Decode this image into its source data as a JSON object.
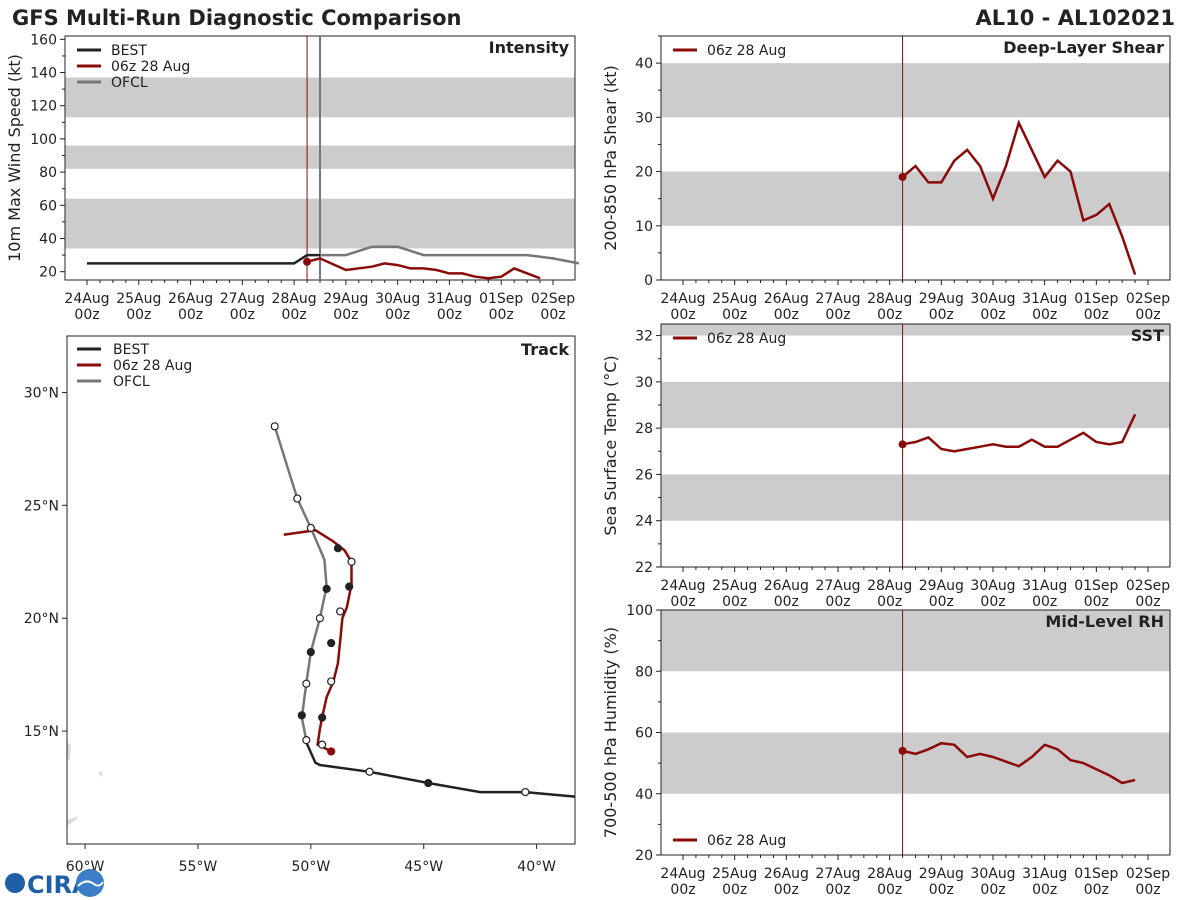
{
  "header": {
    "title": "GFS Multi-Run Diagnostic Comparison",
    "storm_id": "AL10 - AL102021",
    "logo_text": "CIRA"
  },
  "colors": {
    "best": "#222222",
    "run": "#8b0a0a",
    "ofcl": "#777777",
    "band": "#cccccc"
  },
  "time_ticks": [
    "24Aug",
    "25Aug",
    "26Aug",
    "27Aug",
    "28Aug",
    "29Aug",
    "30Aug",
    "31Aug",
    "01Sep",
    "02Sep"
  ],
  "tick_hour": "00z",
  "chart_data": [
    {
      "type": "line",
      "id": "intensity",
      "title": "Intensity",
      "ylabel": "10m Max Wind Speed (kt)",
      "ylim": [
        15,
        162
      ],
      "yticks": [
        20,
        40,
        60,
        80,
        100,
        120,
        140,
        160
      ],
      "bands": [
        [
          34,
          64
        ],
        [
          82,
          96
        ],
        [
          113,
          137
        ]
      ],
      "init_time": 4.25,
      "ofcl_time": 4.5,
      "legend": [
        "BEST",
        "06z 28 Aug",
        "OFCL"
      ],
      "series": [
        {
          "name": "BEST",
          "x": [
            0,
            1,
            2,
            3,
            4,
            4.25,
            4.5
          ],
          "y": [
            25,
            25,
            25,
            25,
            25,
            30,
            30
          ]
        },
        {
          "name": "06z 28 Aug",
          "x": [
            4.25,
            4.5,
            5.0,
            5.5,
            5.75,
            6.0,
            6.25,
            6.5,
            6.75,
            7.0,
            7.25,
            7.5,
            7.75,
            8.0,
            8.25,
            8.75
          ],
          "y": [
            26,
            28,
            21,
            23,
            25,
            24,
            22,
            22,
            21,
            19,
            19,
            17,
            16,
            17,
            22,
            16
          ]
        },
        {
          "name": "OFCL",
          "x": [
            4.5,
            5.0,
            5.5,
            6.0,
            6.5,
            7.0,
            7.5,
            8.0,
            8.5,
            9.0,
            9.5
          ],
          "y": [
            30,
            30,
            35,
            35,
            30,
            30,
            30,
            30,
            30,
            28,
            25
          ]
        }
      ]
    },
    {
      "type": "line",
      "id": "shear",
      "title": "Deep-Layer Shear",
      "ylabel": "200-850 hPa Shear (kt)",
      "ylim": [
        0,
        45
      ],
      "yticks": [
        0,
        10,
        20,
        30,
        40
      ],
      "bands": [
        [
          10,
          20
        ],
        [
          30,
          40
        ]
      ],
      "init_time": 4.25,
      "legend": [
        "06z 28 Aug"
      ],
      "series": [
        {
          "name": "06z 28 Aug",
          "x": [
            4.25,
            4.5,
            4.75,
            5.0,
            5.25,
            5.5,
            5.75,
            6.0,
            6.25,
            6.5,
            6.75,
            7.0,
            7.25,
            7.5,
            7.75,
            8.0,
            8.25,
            8.5,
            8.75
          ],
          "y": [
            19,
            21,
            18,
            18,
            22,
            24,
            21,
            15,
            21,
            29,
            24,
            19,
            22,
            20,
            11,
            12,
            14,
            8,
            1
          ]
        }
      ]
    },
    {
      "type": "line",
      "id": "sst",
      "title": "SST",
      "ylabel": "Sea Surface Temp (°C)",
      "ylim": [
        22,
        32.5
      ],
      "yticks": [
        22,
        24,
        26,
        28,
        30,
        32
      ],
      "bands": [
        [
          24,
          26
        ],
        [
          28,
          30
        ],
        [
          32,
          32.5
        ]
      ],
      "init_time": 4.25,
      "legend": [
        "06z 28 Aug"
      ],
      "series": [
        {
          "name": "06z 28 Aug",
          "x": [
            4.25,
            4.5,
            4.75,
            5.0,
            5.25,
            5.5,
            5.75,
            6.0,
            6.25,
            6.5,
            6.75,
            7.0,
            7.25,
            7.5,
            7.75,
            8.0,
            8.25,
            8.5,
            8.75
          ],
          "y": [
            27.3,
            27.4,
            27.6,
            27.1,
            27.0,
            27.1,
            27.2,
            27.3,
            27.2,
            27.2,
            27.5,
            27.2,
            27.2,
            27.5,
            27.8,
            27.4,
            27.3,
            27.4,
            28.6
          ]
        }
      ]
    },
    {
      "type": "line",
      "id": "rh",
      "title": "Mid-Level RH",
      "ylabel": "700-500 hPa Humidity (%)",
      "ylim": [
        20,
        100
      ],
      "yticks": [
        20,
        40,
        60,
        80,
        100
      ],
      "bands": [
        [
          40,
          60
        ],
        [
          80,
          100
        ]
      ],
      "init_time": 4.25,
      "legend": [
        "06z 28 Aug"
      ],
      "series": [
        {
          "name": "06z 28 Aug",
          "x": [
            4.25,
            4.5,
            4.75,
            5.0,
            5.25,
            5.5,
            5.75,
            6.0,
            6.25,
            6.5,
            6.75,
            7.0,
            7.25,
            7.5,
            7.75,
            8.0,
            8.25,
            8.5,
            8.75
          ],
          "y": [
            54,
            53,
            54.5,
            56.5,
            56,
            52,
            53,
            52,
            50.5,
            49,
            52,
            56,
            54.5,
            51,
            50,
            48,
            46,
            43.5,
            44.5
          ]
        }
      ]
    },
    {
      "type": "scatter",
      "id": "track",
      "title": "Track",
      "xlim": [
        -60.8,
        -38.3
      ],
      "ylim": [
        10.0,
        32.5
      ],
      "xticks": [
        -60,
        -55,
        -50,
        -45,
        -40
      ],
      "xtick_labels": [
        "60°W",
        "55°W",
        "50°W",
        "45°W",
        "40°W"
      ],
      "yticks": [
        15,
        20,
        25,
        30
      ],
      "ytick_labels": [
        "15°N",
        "20°N",
        "25°N",
        "30°N"
      ],
      "legend": [
        "BEST",
        "06z 28 Aug",
        "OFCL"
      ],
      "series": [
        {
          "name": "BEST",
          "lon": [
            -38.3,
            -40.5,
            -42.5,
            -44.8,
            -47.4,
            -49.6,
            -49.8,
            -50.2,
            -50.2
          ],
          "lat": [
            12.1,
            12.3,
            12.3,
            12.7,
            13.2,
            13.5,
            13.6,
            14.5,
            14.6
          ]
        },
        {
          "name": "06z 28 Aug",
          "lon": [
            -49.1,
            -49.5,
            -49.7,
            -49.6,
            -49.5,
            -49.3,
            -49.0,
            -48.8,
            -48.7,
            -48.6,
            -48.4,
            -48.3,
            -48.2,
            -48.2,
            -48.5,
            -49.0,
            -49.8,
            -51.2
          ],
          "lat": [
            14.1,
            14.3,
            14.4,
            15.1,
            15.6,
            16.5,
            17.2,
            18.0,
            19.0,
            20.0,
            20.5,
            21.0,
            21.5,
            22.5,
            23.0,
            23.4,
            23.9,
            23.7
          ]
        },
        {
          "name": "OFCL",
          "lon": [
            -50.2,
            -50.4,
            -50.2,
            -50.0,
            -49.6,
            -49.3,
            -49.4,
            -50.0,
            -50.6,
            -51.6
          ],
          "lat": [
            14.6,
            15.6,
            17.1,
            18.5,
            20.0,
            21.4,
            22.6,
            24.0,
            25.3,
            28.5
          ]
        }
      ],
      "markers": [
        {
          "name": "BEST",
          "lon": [
            -40.5,
            -44.8,
            -47.4,
            -49.5,
            -50.2
          ],
          "lat": [
            12.3,
            12.7,
            13.2,
            14.4,
            14.6
          ],
          "filled": [
            false,
            true,
            false,
            false,
            false
          ]
        },
        {
          "name": "06z 28 Aug",
          "lon": [
            -49.1
          ],
          "lat": [
            14.1
          ],
          "filled": [
            true
          ]
        },
        {
          "name": "OFCL",
          "lon": [
            -49.5,
            -50.4,
            -49.1,
            -50.2,
            -49.1,
            -50.0,
            -48.7,
            -49.6,
            -48.3,
            -49.3,
            -48.2,
            -48.8,
            -50.0,
            -50.6,
            -51.6
          ],
          "lat": [
            15.6,
            15.7,
            17.2,
            17.1,
            18.9,
            18.5,
            20.3,
            20.0,
            21.4,
            21.3,
            22.5,
            23.1,
            24.0,
            25.3,
            28.5
          ],
          "filled": [
            true,
            true,
            false,
            false,
            true,
            true,
            false,
            false,
            true,
            true,
            false,
            true,
            false,
            false,
            false
          ]
        }
      ]
    }
  ]
}
